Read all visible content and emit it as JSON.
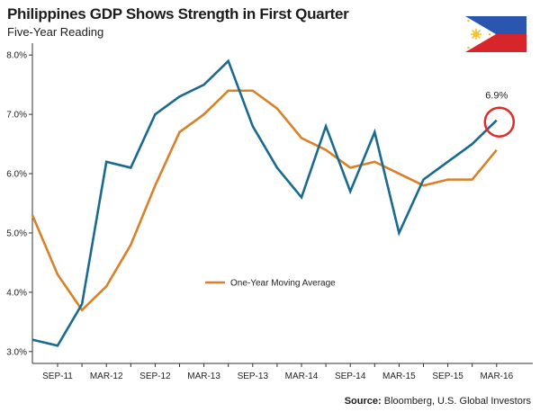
{
  "header": {
    "title": "Philippines GDP Shows Strength in First Quarter",
    "subtitle": "Five-Year Reading"
  },
  "footer": {
    "source_label": "Source:",
    "source_text": "Bloomberg, U.S. Global Investors"
  },
  "colors": {
    "gdp": "#1a6a8f",
    "moving_average": "#d98028",
    "highlight_circle": "#e02b2b",
    "flag_blue": "#2a56b0",
    "flag_red": "#d7262b",
    "flag_sun": "#f4c430"
  },
  "chart_data": {
    "type": "line",
    "x": [
      "SEP-11",
      "DEC-11",
      "MAR-12",
      "JUN-12",
      "SEP-12",
      "DEC-12",
      "MAR-13",
      "JUN-13",
      "SEP-13",
      "DEC-13",
      "MAR-14",
      "JUN-14",
      "SEP-14",
      "DEC-14",
      "MAR-15",
      "JUN-15",
      "SEP-15",
      "DEC-15",
      "MAR-16"
    ],
    "tick_labels": [
      "SEP-11",
      "",
      "MAR-12",
      "",
      "SEP-12",
      "",
      "MAR-13",
      "",
      "SEP-13",
      "",
      "MAR-14",
      "",
      "SEP-14",
      "",
      "MAR-15",
      "",
      "SEP-15",
      "",
      "MAR-16"
    ],
    "ylim": [
      2.8,
      8.2
    ],
    "yticks": [
      3.0,
      4.0,
      5.0,
      6.0,
      7.0,
      8.0
    ],
    "ytick_labels": [
      "3.0%",
      "4.0%",
      "5.0%",
      "6.0%",
      "7.0%",
      "8.0%"
    ],
    "series": [
      {
        "key": "gdp",
        "values": [
          3.1,
          3.8,
          6.2,
          6.1,
          7.0,
          7.3,
          7.5,
          7.9,
          6.8,
          6.1,
          5.6,
          6.8,
          5.7,
          6.7,
          5.0,
          5.9,
          6.2,
          6.5,
          6.9
        ],
        "lead_in": 3.2
      },
      {
        "key": "moving_average",
        "name": "One-Year Moving Average",
        "values": [
          4.3,
          3.7,
          4.1,
          4.8,
          5.8,
          6.7,
          7.0,
          7.4,
          7.4,
          7.1,
          6.6,
          6.4,
          6.1,
          6.2,
          6.0,
          5.8,
          5.9,
          5.9,
          6.4
        ],
        "lead_in": 5.3
      }
    ],
    "annotation": {
      "text": "6.9%",
      "x": "MAR-16",
      "y": 6.9
    },
    "legend": {
      "label": "One-Year Moving Average",
      "placement": "center"
    },
    "grid": false
  }
}
